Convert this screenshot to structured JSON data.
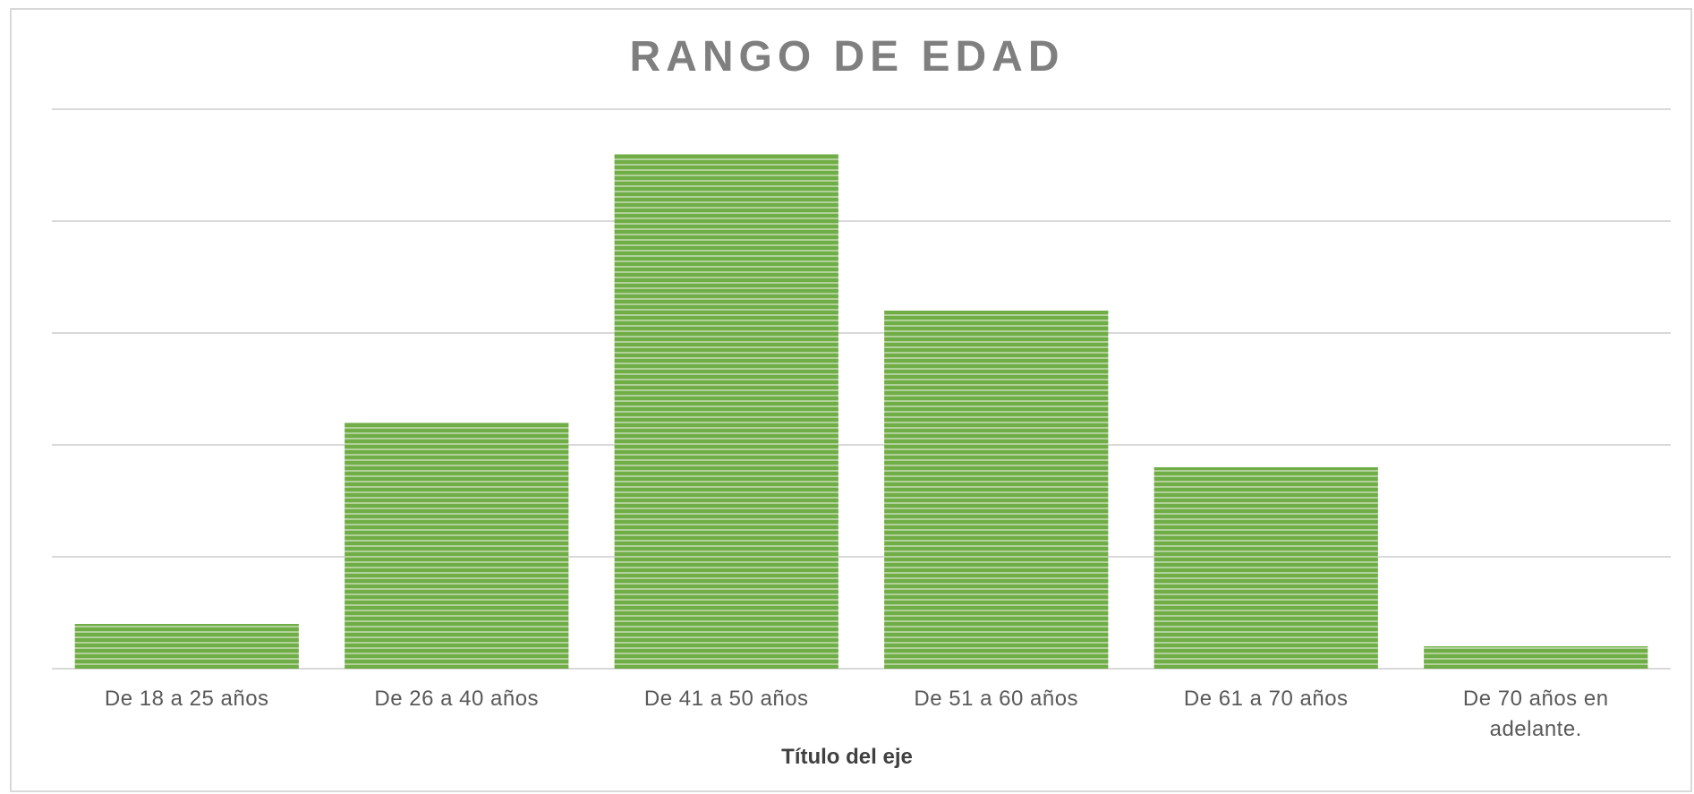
{
  "chart_data": {
    "type": "bar",
    "title": "RANGO DE EDAD",
    "categories": [
      "De 18 a 25 años",
      "De 26 a 40 años",
      "De 41 a 50 años",
      "De 51 a 60 años",
      "De 61 a 70 años",
      "De 70 años en adelante."
    ],
    "values": [
      0.4,
      2.2,
      4.6,
      3.2,
      1.8,
      0.2
    ],
    "color": "#70ad47",
    "xlabel": "Título del eje",
    "ylim": [
      0,
      5
    ],
    "yticks": [
      0,
      1,
      2,
      3,
      4,
      5
    ],
    "grid": true
  }
}
